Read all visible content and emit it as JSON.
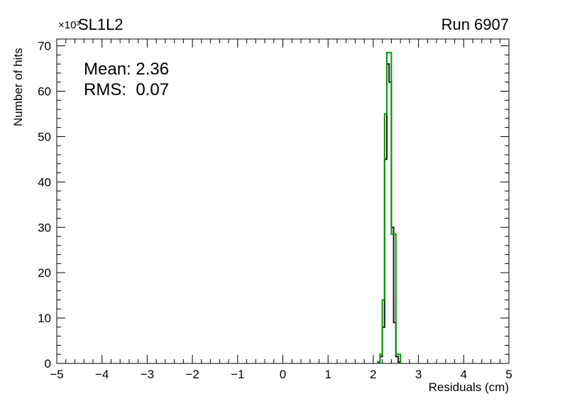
{
  "chart_data": {
    "type": "bar",
    "title": "SL1L2",
    "corner_label": "Run 6907",
    "xlabel": "Residuals (cm)",
    "ylabel": "Number of hits",
    "y_axis_multiplier": "×10³",
    "stats": {
      "mean_label": "Mean: 2.36",
      "rms_label": "RMS:  0.07"
    },
    "xlim": [
      -5,
      5
    ],
    "ylim": [
      0,
      71.5
    ],
    "x_tick_values": [
      -5,
      -4,
      -3,
      -2,
      -1,
      0,
      1,
      2,
      3,
      4,
      5
    ],
    "x_tick_labels": [
      "−5",
      "−4",
      "−3",
      "−2",
      "−1",
      "0",
      "1",
      "2",
      "3",
      "4",
      "5"
    ],
    "x_minor_step": 0.2,
    "y_tick_values": [
      0,
      10,
      20,
      30,
      40,
      50,
      60,
      70
    ],
    "y_tick_labels": [
      "0",
      "10",
      "20",
      "30",
      "40",
      "50",
      "60",
      "70"
    ],
    "y_minor_step": 2,
    "grid": false,
    "legend": "none",
    "series": [
      {
        "name": "hist-black",
        "color": "#1a1a1a",
        "line_width": 2,
        "bin_start": 2.1,
        "bin_width": 0.05,
        "values": [
          0.3,
          1.5,
          8,
          45,
          66,
          62,
          30,
          9,
          1.5,
          0.3
        ]
      },
      {
        "name": "hist-green",
        "color": "#009900",
        "line_width": 2,
        "bin_start": 2.1,
        "bin_width": 0.05,
        "values": [
          0.3,
          2,
          14,
          55,
          68.5,
          68.5,
          28.5,
          28.5,
          2,
          2
        ]
      }
    ]
  }
}
